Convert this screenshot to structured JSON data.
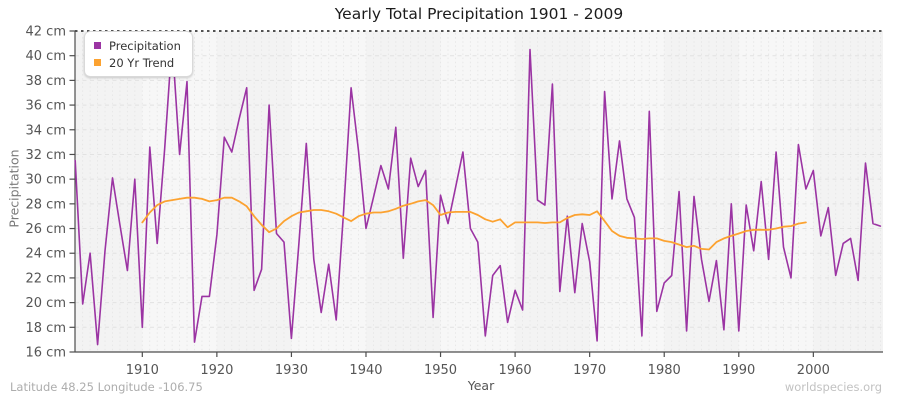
{
  "title": "Yearly Total Precipitation 1901 - 2009",
  "legend": {
    "items": [
      {
        "label": "Precipitation",
        "color": "#9B34A3"
      },
      {
        "label": "20 Yr Trend",
        "color": "#FCA230"
      }
    ]
  },
  "axes": {
    "y_title": "Precipitation",
    "x_title": "Year",
    "y_tick_suffix": " cm",
    "y_ticks": [
      16,
      18,
      20,
      22,
      24,
      26,
      28,
      30,
      32,
      34,
      36,
      38,
      40,
      42
    ],
    "x_ticks": [
      1910,
      1920,
      1930,
      1940,
      1950,
      1960,
      1970,
      1980,
      1990,
      2000
    ]
  },
  "footer": {
    "left": "Latitude 48.25 Longitude -106.75",
    "right": "worldspecies.org"
  },
  "colors": {
    "precipitation_line": "#9B34A3",
    "trend_line": "#FCA230",
    "plot_background": "#f3f3f3",
    "plot_band": "#f7f7f7",
    "gridline": "#e2e2e2",
    "axis": "#4d4d4d",
    "tick_label": "#555555",
    "top_dashed_line": "#1a1a1a"
  },
  "chart_data": {
    "type": "line",
    "title": "Yearly Total Precipitation 1901 - 2009",
    "xlabel": "Year",
    "ylabel": "Precipitation",
    "ylim": [
      16,
      42
    ],
    "y_tick_step": 2,
    "xlim": [
      1901,
      2009
    ],
    "x_ticks": [
      1910,
      1920,
      1930,
      1940,
      1950,
      1960,
      1970,
      1980,
      1990,
      2000
    ],
    "grid": true,
    "legend_position": "top-left",
    "series": [
      {
        "name": "Precipitation",
        "color": "#9B34A3",
        "x_start": 1901,
        "values": [
          31.5,
          19.9,
          24,
          16.6,
          24.2,
          30.1,
          26.3,
          22.6,
          30,
          18,
          32.6,
          24.8,
          32.5,
          41.2,
          32,
          37.9,
          16.8,
          20.5,
          20.5,
          25.5,
          33.4,
          32.2,
          34.9,
          37.4,
          21,
          22.7,
          36,
          25.6,
          24.9,
          17.1,
          24.8,
          32.9,
          23.5,
          19.2,
          23.1,
          18.6,
          27.4,
          37.4,
          32.3,
          26,
          28.5,
          31.1,
          29.2,
          34.2,
          23.6,
          31.7,
          29.4,
          30.7,
          18.8,
          28.7,
          26.4,
          29.3,
          32.2,
          26,
          24.9,
          17.3,
          22.2,
          23,
          18.4,
          21,
          19.4,
          40.5,
          28.3,
          27.9,
          37.7,
          20.9,
          27,
          20.8,
          26.4,
          23.3,
          16.9,
          37.1,
          28.4,
          33.1,
          28.4,
          26.9,
          17.3,
          35.5,
          19.3,
          21.6,
          22.2,
          29,
          17.7,
          28.6,
          23.5,
          20.1,
          23.4,
          17.8,
          28,
          17.7,
          27.9,
          24.2,
          29.8,
          23.5,
          32.2,
          24.5,
          22,
          32.8,
          29.2,
          30.7,
          25.4,
          27.7,
          22.2,
          24.8,
          25.2,
          21.8,
          31.3,
          26.4,
          26.2
        ]
      },
      {
        "name": "20 Yr Trend",
        "color": "#FCA230",
        "x_start": 1910,
        "values": [
          26.5,
          27.3,
          27.9,
          28.2,
          28.3,
          28.4,
          28.5,
          28.5,
          28.4,
          28.2,
          28.3,
          28.5,
          28.5,
          28.2,
          27.8,
          27,
          26.3,
          25.7,
          26,
          26.6,
          27,
          27.3,
          27.4,
          27.5,
          27.5,
          27.4,
          27.2,
          26.9,
          26.6,
          27,
          27.2,
          27.3,
          27.3,
          27.4,
          27.6,
          27.85,
          28,
          28.2,
          28.3,
          27.9,
          27.1,
          27.3,
          27.35,
          27.35,
          27.35,
          27.1,
          26.75,
          26.55,
          26.75,
          26.1,
          26.5,
          26.5,
          26.5,
          26.5,
          26.45,
          26.5,
          26.5,
          26.85,
          27.1,
          27.15,
          27.1,
          27.4,
          26.6,
          25.8,
          25.4,
          25.25,
          25.2,
          25.15,
          25.2,
          25.2,
          25,
          24.9,
          24.7,
          24.5,
          24.6,
          24.35,
          24.3,
          24.9,
          25.2,
          25.4,
          25.6,
          25.8,
          25.9,
          25.9,
          25.9,
          26,
          26.15,
          26.2,
          26.4,
          26.5
        ]
      }
    ]
  }
}
